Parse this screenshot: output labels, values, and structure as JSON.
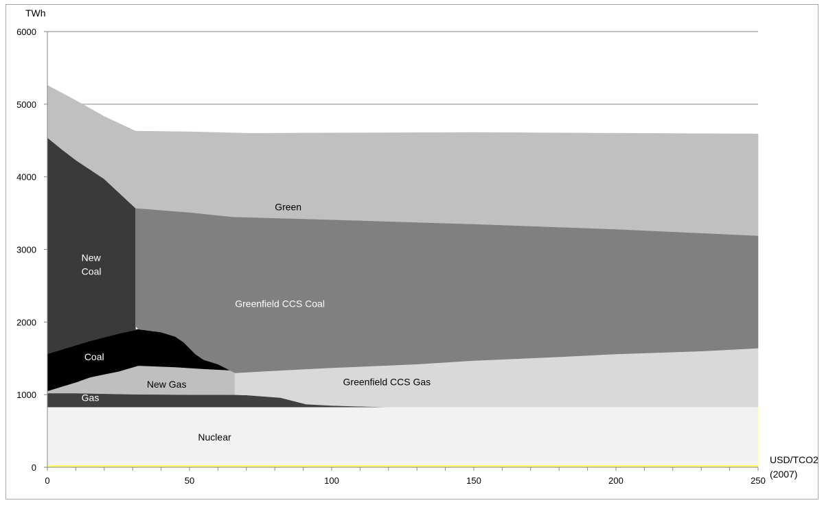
{
  "chart_data": {
    "type": "area",
    "stacked": true,
    "ylabel": "TWh",
    "xlabel_lines": [
      "USD/TCO2",
      "(2007)"
    ],
    "xlim": [
      0,
      250
    ],
    "ylim": [
      0,
      6000
    ],
    "x_ticks": [
      0,
      50,
      100,
      150,
      200,
      250
    ],
    "y_ticks": [
      0,
      1000,
      2000,
      3000,
      4000,
      5000,
      6000
    ],
    "grid": "horizontal",
    "series": [
      {
        "name": "Nuclear",
        "color": "#f2f2f2",
        "label_color": "#000000",
        "bottom": [
          [
            0,
            30
          ],
          [
            250,
            30
          ]
        ],
        "top": [
          [
            0,
            830
          ],
          [
            250,
            830
          ]
        ],
        "label": "Nuclear",
        "label_at": [
          53,
          370
        ]
      },
      {
        "name": "Gas",
        "color": "#404040",
        "label_color": "#ffffff",
        "bottom": [
          [
            0,
            830
          ],
          [
            250,
            830
          ]
        ],
        "top": [
          [
            0,
            1020
          ],
          [
            10,
            1020
          ],
          [
            30,
            1005
          ],
          [
            50,
            1000
          ],
          [
            70,
            995
          ],
          [
            82,
            960
          ],
          [
            91,
            870
          ],
          [
            100,
            850
          ],
          [
            120,
            830
          ],
          [
            250,
            830
          ]
        ],
        "label": "Gas",
        "label_at": [
          12,
          910
        ]
      },
      {
        "name": "New Gas",
        "color": "#bfbfbf",
        "label_color": "#000000",
        "bottom": [
          [
            0,
            1020
          ],
          [
            10,
            1020
          ],
          [
            30,
            1005
          ],
          [
            50,
            1000
          ],
          [
            66,
            1000
          ],
          [
            70,
            995
          ],
          [
            82,
            960
          ],
          [
            91,
            870
          ],
          [
            100,
            850
          ],
          [
            120,
            830
          ],
          [
            250,
            830
          ]
        ],
        "top": [
          [
            0,
            1050
          ],
          [
            5,
            1110
          ],
          [
            10,
            1170
          ],
          [
            15,
            1240
          ],
          [
            20,
            1280
          ],
          [
            25,
            1320
          ],
          [
            32,
            1400
          ],
          [
            45,
            1380
          ],
          [
            55,
            1355
          ],
          [
            65,
            1335
          ],
          [
            66,
            1300
          ],
          [
            70,
            995
          ],
          [
            82,
            960
          ],
          [
            91,
            870
          ],
          [
            100,
            850
          ],
          [
            120,
            830
          ],
          [
            250,
            830
          ]
        ],
        "label": "New Gas",
        "label_at": [
          35,
          1095
        ]
      },
      {
        "name": "Greenfield CCS Gas",
        "color": "#d9d9d9",
        "label_color": "#000000",
        "bottom": [
          [
            66,
            1000
          ],
          [
            70,
            995
          ],
          [
            82,
            960
          ],
          [
            91,
            870
          ],
          [
            100,
            850
          ],
          [
            120,
            830
          ],
          [
            250,
            830
          ]
        ],
        "top": [
          [
            66,
            1300
          ],
          [
            80,
            1330
          ],
          [
            100,
            1370
          ],
          [
            130,
            1420
          ],
          [
            150,
            1470
          ],
          [
            180,
            1520
          ],
          [
            200,
            1560
          ],
          [
            230,
            1600
          ],
          [
            250,
            1640
          ]
        ],
        "label": "Greenfield CCS Gas",
        "label_at": [
          104,
          1130
        ]
      },
      {
        "name": "Coal",
        "color": "#000000",
        "label_color": "#ffffff",
        "bottom": [
          [
            0,
            1050
          ],
          [
            5,
            1110
          ],
          [
            10,
            1170
          ],
          [
            15,
            1240
          ],
          [
            20,
            1280
          ],
          [
            25,
            1320
          ],
          [
            32,
            1400
          ],
          [
            45,
            1380
          ],
          [
            55,
            1355
          ],
          [
            65,
            1335
          ]
        ],
        "top": [
          [
            0,
            1560
          ],
          [
            5,
            1620
          ],
          [
            10,
            1680
          ],
          [
            15,
            1740
          ],
          [
            20,
            1790
          ],
          [
            25,
            1840
          ],
          [
            32,
            1900
          ],
          [
            40,
            1860
          ],
          [
            45,
            1800
          ],
          [
            48,
            1720
          ],
          [
            50,
            1640
          ],
          [
            52,
            1560
          ],
          [
            55,
            1480
          ],
          [
            60,
            1420
          ],
          [
            65,
            1335
          ]
        ],
        "label": "Coal",
        "label_at": [
          13,
          1475
        ]
      },
      {
        "name": "New Coal",
        "color": "#3a3a3a",
        "label_color": "#ffffff",
        "bottom": [
          [
            0,
            1560
          ],
          [
            5,
            1620
          ],
          [
            10,
            1680
          ],
          [
            15,
            1740
          ],
          [
            20,
            1790
          ],
          [
            25,
            1840
          ],
          [
            31,
            1890
          ]
        ],
        "top": [
          [
            0,
            4540
          ],
          [
            5,
            4380
          ],
          [
            10,
            4230
          ],
          [
            20,
            3970
          ],
          [
            31,
            3570
          ]
        ],
        "label_lines": [
          "New",
          "Coal"
        ],
        "label_at": [
          12,
          2840
        ]
      },
      {
        "name": "Greenfield CCS Coal",
        "color": "#808080",
        "label_color": "#ffffff",
        "bottom": [
          [
            31,
            1950
          ],
          [
            32,
            1900
          ],
          [
            40,
            1860
          ],
          [
            45,
            1800
          ],
          [
            48,
            1720
          ],
          [
            50,
            1640
          ],
          [
            52,
            1560
          ],
          [
            55,
            1480
          ],
          [
            60,
            1420
          ],
          [
            66,
            1300
          ],
          [
            80,
            1330
          ],
          [
            100,
            1370
          ],
          [
            130,
            1420
          ],
          [
            150,
            1470
          ],
          [
            180,
            1520
          ],
          [
            200,
            1560
          ],
          [
            230,
            1600
          ],
          [
            250,
            1640
          ]
        ],
        "top": [
          [
            31,
            3570
          ],
          [
            50,
            3510
          ],
          [
            65,
            3450
          ],
          [
            100,
            3410
          ],
          [
            150,
            3350
          ],
          [
            200,
            3280
          ],
          [
            250,
            3190
          ]
        ],
        "label": "Greenfield CCS Coal",
        "label_at": [
          66,
          2205
        ]
      },
      {
        "name": "Green",
        "color": "#c0c0c0",
        "label_color": "#000000",
        "bottom": [
          [
            0,
            4540
          ],
          [
            5,
            4380
          ],
          [
            10,
            4230
          ],
          [
            20,
            3970
          ],
          [
            31,
            3570
          ],
          [
            50,
            3510
          ],
          [
            65,
            3450
          ],
          [
            100,
            3410
          ],
          [
            150,
            3350
          ],
          [
            200,
            3280
          ],
          [
            250,
            3190
          ]
        ],
        "top": [
          [
            0,
            5260
          ],
          [
            10,
            5050
          ],
          [
            20,
            4830
          ],
          [
            31,
            4630
          ],
          [
            50,
            4620
          ],
          [
            70,
            4600
          ],
          [
            150,
            4610
          ],
          [
            250,
            4590
          ]
        ],
        "label": "Green",
        "label_at": [
          80,
          3540
        ]
      }
    ],
    "baseline_line": {
      "color": "#ffff66",
      "y": 0
    }
  }
}
